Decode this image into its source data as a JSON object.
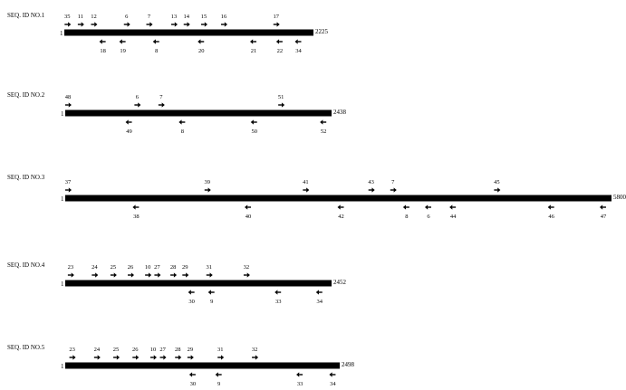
{
  "sequences": [
    {
      "label": "SEQ. ID NO.1",
      "start": "1",
      "end": "2225",
      "forward_primers": [
        {
          "label": "35",
          "pos": 0.012
        },
        {
          "label": "11",
          "pos": 0.065
        },
        {
          "label": "12",
          "pos": 0.118
        },
        {
          "label": "6",
          "pos": 0.25
        },
        {
          "label": "7",
          "pos": 0.34
        },
        {
          "label": "13",
          "pos": 0.44
        },
        {
          "label": "14",
          "pos": 0.49
        },
        {
          "label": "15",
          "pos": 0.56
        },
        {
          "label": "16",
          "pos": 0.64
        },
        {
          "label": "17",
          "pos": 0.85
        }
      ],
      "reverse_primers": [
        {
          "label": "18",
          "pos": 0.155
        },
        {
          "label": "19",
          "pos": 0.235
        },
        {
          "label": "8",
          "pos": 0.37
        },
        {
          "label": "20",
          "pos": 0.55
        },
        {
          "label": "21",
          "pos": 0.76
        },
        {
          "label": "22",
          "pos": 0.865
        },
        {
          "label": "34",
          "pos": 0.94
        }
      ]
    },
    {
      "label": "SEQ. ID NO.2",
      "start": "1",
      "end": "2438",
      "forward_primers": [
        {
          "label": "48",
          "pos": 0.01
        },
        {
          "label": "6",
          "pos": 0.27
        },
        {
          "label": "7",
          "pos": 0.36
        },
        {
          "label": "51",
          "pos": 0.81
        }
      ],
      "reverse_primers": [
        {
          "label": "49",
          "pos": 0.24
        },
        {
          "label": "8",
          "pos": 0.44
        },
        {
          "label": "50",
          "pos": 0.71
        },
        {
          "label": "52",
          "pos": 0.97
        }
      ]
    },
    {
      "label": "SEQ. ID NO.3",
      "start": "1",
      "end": "5800",
      "forward_primers": [
        {
          "label": "37",
          "pos": 0.005
        },
        {
          "label": "39",
          "pos": 0.26
        },
        {
          "label": "41",
          "pos": 0.44
        },
        {
          "label": "43",
          "pos": 0.56
        },
        {
          "label": "7",
          "pos": 0.6
        },
        {
          "label": "45",
          "pos": 0.79
        }
      ],
      "reverse_primers": [
        {
          "label": "38",
          "pos": 0.13
        },
        {
          "label": "40",
          "pos": 0.335
        },
        {
          "label": "42",
          "pos": 0.505
        },
        {
          "label": "8",
          "pos": 0.625
        },
        {
          "label": "6",
          "pos": 0.665
        },
        {
          "label": "44",
          "pos": 0.71
        },
        {
          "label": "46",
          "pos": 0.89
        },
        {
          "label": "47",
          "pos": 0.985
        }
      ]
    },
    {
      "label": "SEQ. ID NO.4",
      "start": "1",
      "end": "2452",
      "forward_primers": [
        {
          "label": "23",
          "pos": 0.02
        },
        {
          "label": "24",
          "pos": 0.11
        },
        {
          "label": "25",
          "pos": 0.18
        },
        {
          "label": "26",
          "pos": 0.245
        },
        {
          "label": "10",
          "pos": 0.31
        },
        {
          "label": "27",
          "pos": 0.345
        },
        {
          "label": "28",
          "pos": 0.405
        },
        {
          "label": "29",
          "pos": 0.45
        },
        {
          "label": "31",
          "pos": 0.54
        },
        {
          "label": "32",
          "pos": 0.68
        }
      ],
      "reverse_primers": [
        {
          "label": "30",
          "pos": 0.475
        },
        {
          "label": "9",
          "pos": 0.55
        },
        {
          "label": "33",
          "pos": 0.8
        },
        {
          "label": "34",
          "pos": 0.955
        }
      ]
    },
    {
      "label": "SEQ. ID NO.5",
      "start": "1",
      "end": "2498",
      "forward_primers": [
        {
          "label": "23",
          "pos": 0.025
        },
        {
          "label": "24",
          "pos": 0.115
        },
        {
          "label": "25",
          "pos": 0.185
        },
        {
          "label": "26",
          "pos": 0.255
        },
        {
          "label": "10",
          "pos": 0.32
        },
        {
          "label": "27",
          "pos": 0.355
        },
        {
          "label": "28",
          "pos": 0.41
        },
        {
          "label": "29",
          "pos": 0.455
        },
        {
          "label": "31",
          "pos": 0.565
        },
        {
          "label": "32",
          "pos": 0.69
        }
      ],
      "reverse_primers": [
        {
          "label": "30",
          "pos": 0.465
        },
        {
          "label": "9",
          "pos": 0.56
        },
        {
          "label": "33",
          "pos": 0.855
        },
        {
          "label": "34",
          "pos": 0.975
        }
      ]
    }
  ]
}
